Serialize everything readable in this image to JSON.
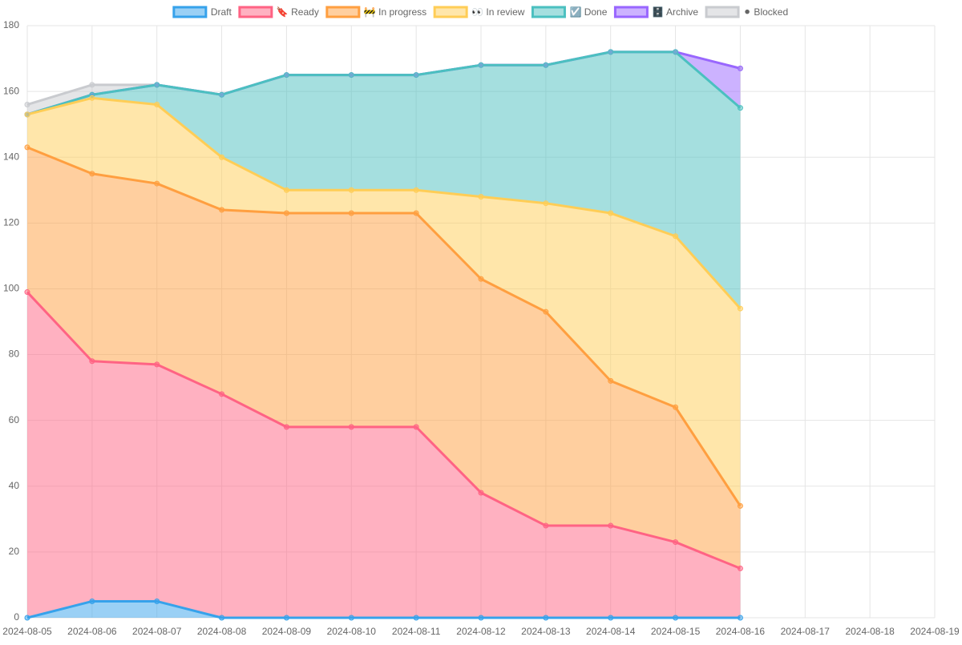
{
  "chart_data": {
    "type": "stacked_area",
    "categories": [
      "2024-08-05",
      "2024-08-06",
      "2024-08-07",
      "2024-08-08",
      "2024-08-09",
      "2024-08-10",
      "2024-08-11",
      "2024-08-12",
      "2024-08-13",
      "2024-08-14",
      "2024-08-15",
      "2024-08-16",
      "2024-08-17",
      "2024-08-18",
      "2024-08-19"
    ],
    "series": [
      {
        "name": "Draft",
        "color": "#36a2eb",
        "values": [
          0,
          5,
          5,
          0,
          0,
          0,
          0,
          0,
          0,
          0,
          0,
          0,
          null,
          null,
          null
        ]
      },
      {
        "name": "🔖 Ready",
        "color": "#ff6384",
        "values": [
          99,
          73,
          72,
          68,
          58,
          58,
          58,
          38,
          28,
          28,
          23,
          15,
          null,
          null,
          null
        ]
      },
      {
        "name": "🚧 In progress",
        "color": "#ff9f40",
        "values": [
          44,
          57,
          55,
          56,
          65,
          65,
          65,
          65,
          65,
          44,
          41,
          19,
          null,
          null,
          null
        ]
      },
      {
        "name": "👀 In review",
        "color": "#ffcd56",
        "values": [
          10,
          23,
          24,
          16,
          7,
          7,
          7,
          25,
          33,
          51,
          52,
          60,
          null,
          null,
          null
        ]
      },
      {
        "name": "☑️ Done",
        "color": "#4bc0c0",
        "values": [
          0,
          1,
          6,
          19,
          35,
          35,
          35,
          40,
          42,
          49,
          56,
          61,
          null,
          null,
          null
        ]
      },
      {
        "name": "🗄️ Archive",
        "color": "#9966ff",
        "values": [
          0,
          0,
          0,
          0,
          0,
          0,
          0,
          0,
          0,
          0,
          0,
          12,
          null,
          null,
          null
        ]
      },
      {
        "name": "⚫ Blocked",
        "color": "#c9cbcf",
        "values": [
          3,
          3,
          0,
          0,
          0,
          0,
          0,
          0,
          0,
          0,
          0,
          0,
          null,
          null,
          null
        ]
      }
    ],
    "ylim": [
      0,
      180
    ],
    "yticks": [
      0,
      20,
      40,
      60,
      80,
      100,
      120,
      140,
      160,
      180
    ],
    "grid": true,
    "legend": "top"
  }
}
